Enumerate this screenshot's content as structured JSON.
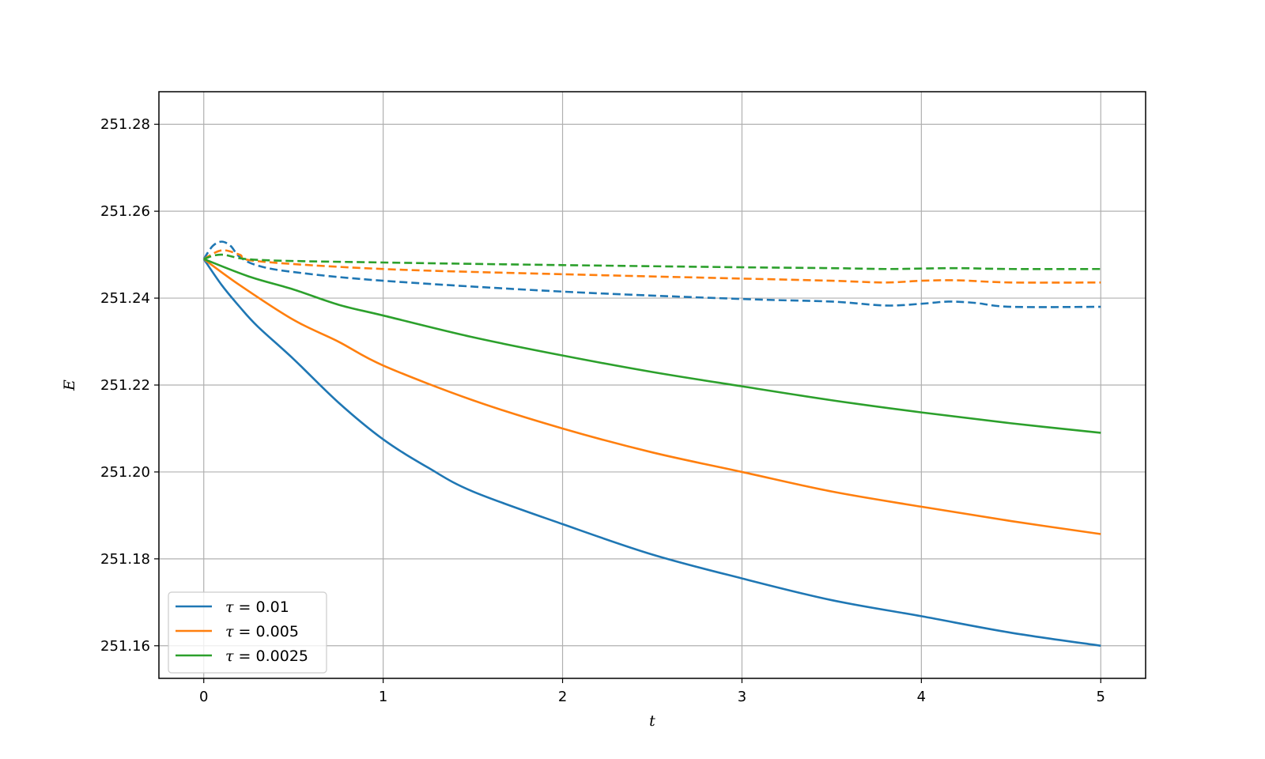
{
  "chart_data": {
    "type": "line",
    "title": "",
    "xlabel": "t",
    "ylabel": "E",
    "xlim": [
      -0.25,
      5.25
    ],
    "ylim": [
      251.1525,
      251.2875
    ],
    "xticks": [
      0,
      1,
      2,
      3,
      4,
      5
    ],
    "xtick_labels": [
      "0",
      "1",
      "2",
      "3",
      "4",
      "5"
    ],
    "yticks": [
      251.16,
      251.18,
      251.2,
      251.22,
      251.24,
      251.26,
      251.28
    ],
    "ytick_labels": [
      "251.16",
      "251.18",
      "251.20",
      "251.22",
      "251.24",
      "251.26",
      "251.28"
    ],
    "grid": true,
    "legend": {
      "location": "lower-left",
      "entries": [
        {
          "symbol": "τ",
          "text": " = 0.01",
          "color": "#1f77b4"
        },
        {
          "symbol": "τ",
          "text": " = 0.005",
          "color": "#ff7f0e"
        },
        {
          "symbol": "τ",
          "text": " = 0.0025",
          "color": "#2ca02c"
        }
      ]
    },
    "series": [
      {
        "name": "τ = 0.01",
        "color": "#1f77b4",
        "dash": "solid",
        "x": [
          0,
          0.1,
          0.2,
          0.3,
          0.5,
          0.75,
          1.0,
          1.25,
          1.5,
          2.0,
          2.5,
          3.0,
          3.5,
          4.0,
          4.5,
          5.0
        ],
        "y": [
          251.249,
          251.243,
          251.238,
          251.2335,
          251.226,
          251.216,
          251.2075,
          251.201,
          251.1955,
          251.188,
          251.181,
          251.1755,
          251.1705,
          251.1668,
          251.163,
          251.16
        ]
      },
      {
        "name": "τ = 0.005",
        "color": "#ff7f0e",
        "dash": "solid",
        "x": [
          0,
          0.2,
          0.5,
          0.75,
          1.0,
          1.5,
          2.0,
          2.5,
          3.0,
          3.5,
          4.0,
          4.5,
          5.0
        ],
        "y": [
          251.249,
          251.243,
          251.235,
          251.23,
          251.2245,
          251.2165,
          251.21,
          251.2045,
          251.2,
          251.1955,
          251.192,
          251.1887,
          251.1857
        ]
      },
      {
        "name": "τ = 0.0025",
        "color": "#2ca02c",
        "dash": "solid",
        "x": [
          0,
          0.25,
          0.5,
          0.75,
          1.0,
          1.5,
          2.0,
          2.5,
          3.0,
          3.5,
          4.0,
          4.5,
          5.0
        ],
        "y": [
          251.249,
          251.245,
          251.242,
          251.2385,
          251.236,
          251.231,
          251.2268,
          251.223,
          251.2197,
          251.2165,
          251.2137,
          251.2112,
          251.209
        ]
      },
      {
        "name": "τ = 0.01 (dashed)",
        "color": "#1f77b4",
        "dash": "dashed",
        "x": [
          0,
          0.05,
          0.1,
          0.15,
          0.2,
          0.3,
          0.5,
          1.0,
          2.0,
          3.0,
          3.5,
          3.8,
          4.0,
          4.15,
          4.3,
          4.5,
          5.0
        ],
        "y": [
          251.249,
          251.252,
          251.253,
          251.252,
          251.2495,
          251.2475,
          251.246,
          251.244,
          251.2415,
          251.2398,
          251.2392,
          251.2383,
          251.2387,
          251.2392,
          251.2389,
          251.238,
          251.238
        ]
      },
      {
        "name": "τ = 0.005 (dashed)",
        "color": "#ff7f0e",
        "dash": "dashed",
        "x": [
          0,
          0.1,
          0.2,
          0.3,
          1.0,
          2.0,
          3.0,
          3.5,
          3.8,
          4.0,
          4.2,
          4.5,
          5.0
        ],
        "y": [
          251.249,
          251.251,
          251.25,
          251.2485,
          251.2467,
          251.2455,
          251.2445,
          251.244,
          251.2436,
          251.244,
          251.2441,
          251.2436,
          251.2436
        ]
      },
      {
        "name": "τ = 0.0025 (dashed)",
        "color": "#2ca02c",
        "dash": "dashed",
        "x": [
          0,
          0.1,
          0.3,
          1.0,
          2.0,
          3.0,
          3.5,
          3.8,
          4.0,
          4.2,
          4.5,
          5.0
        ],
        "y": [
          251.249,
          251.25,
          251.2488,
          251.2482,
          251.2476,
          251.2471,
          251.2469,
          251.2467,
          251.2468,
          251.2469,
          251.2467,
          251.2467
        ]
      }
    ]
  }
}
